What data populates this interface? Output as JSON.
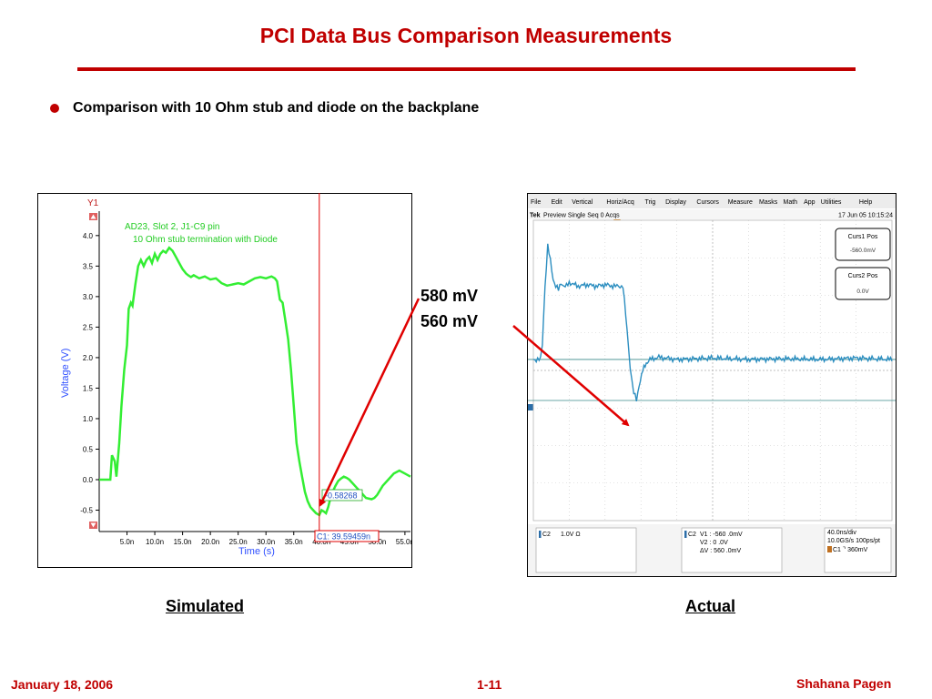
{
  "slide": {
    "title": "PCI Data Bus Comparison Measurements",
    "bullet": "Comparison with 10 Ohm stub and diode on the backplane",
    "annotations": [
      "580 mV",
      "560 mV"
    ],
    "captions": {
      "simulated": "Simulated",
      "actual": "Actual"
    },
    "footer": {
      "date": "January 18, 2006",
      "page": "1-11",
      "author": "Shahana Pagen"
    }
  },
  "chart_data": [
    {
      "type": "line",
      "name": "Simulated",
      "corner_label": "Y1",
      "legend": [
        "AD23, Slot 2, J1-C9 pin",
        "10 Ohm stub termination with Diode"
      ],
      "xlabel": "Time (s)",
      "ylabel": "Voltage (V)",
      "xlim": [
        0,
        56
      ],
      "ylim": [
        -0.85,
        4.4
      ],
      "xticks": [
        5,
        10,
        15,
        20,
        25,
        30,
        35,
        40,
        45,
        50,
        55
      ],
      "xtick_labels": [
        "5.0n",
        "10.0n",
        "15.0n",
        "20.0n",
        "25.0n",
        "30.0n",
        "35.0n",
        "40.0n",
        "45.0n",
        "50.0n",
        "55.0n"
      ],
      "yticks": [
        4.0,
        3.5,
        3.0,
        2.5,
        2.0,
        1.5,
        1.0,
        0.5,
        0.0,
        -0.5
      ],
      "ytick_labels": [
        "4.0",
        "3.5",
        "3.0",
        "2.5",
        "2.0",
        "1.5",
        "1.0",
        "0.5",
        "0.0",
        "-0.5"
      ],
      "cursor_x": 39.59459,
      "cursor_label": "C1: 39.59459n",
      "marker_label": "-0.58268",
      "line_color": "#33ee33",
      "cursor_color": "#e00000",
      "series": [
        {
          "x": [
            0,
            1,
            2,
            2.3,
            2.8,
            3.1,
            3.6,
            4.0,
            4.5,
            5.0,
            5.3,
            5.7,
            6.0,
            6.5,
            7.0,
            7.5,
            8.0,
            8.5,
            9.0,
            9.5,
            10.0,
            10.5,
            11.0,
            11.5,
            12.0,
            12.6,
            13.2,
            13.8,
            14.4,
            15.0,
            15.6,
            16.0,
            16.5,
            17.0,
            18.0,
            19.0,
            20.0,
            21.0,
            22.0,
            23.0,
            24.0,
            25.0,
            26.0,
            27.0,
            28.0,
            29.0,
            30.0,
            31.0,
            31.6,
            32.0,
            32.5,
            33.0,
            33.5,
            34.0,
            34.5,
            35.0,
            35.5,
            36.0,
            36.5,
            37.0,
            37.5,
            38.0,
            38.5,
            39.0,
            39.6,
            40.0,
            40.4,
            40.8,
            41.2,
            41.6,
            42.0,
            42.5,
            43.0,
            43.5,
            44.0,
            44.5,
            45.0,
            46.0,
            47.0,
            48.0,
            49.0,
            49.5,
            50.0,
            51.0,
            52.0,
            53.0,
            54.0,
            55.0,
            56.0
          ],
          "y": [
            0.0,
            0.0,
            0.0,
            0.4,
            0.3,
            0.05,
            0.6,
            1.2,
            1.8,
            2.2,
            2.8,
            2.9,
            2.85,
            3.2,
            3.5,
            3.6,
            3.5,
            3.6,
            3.65,
            3.55,
            3.7,
            3.6,
            3.7,
            3.75,
            3.72,
            3.8,
            3.75,
            3.65,
            3.55,
            3.45,
            3.38,
            3.35,
            3.32,
            3.35,
            3.3,
            3.33,
            3.28,
            3.3,
            3.22,
            3.18,
            3.2,
            3.22,
            3.2,
            3.25,
            3.3,
            3.32,
            3.3,
            3.33,
            3.3,
            3.25,
            2.95,
            2.9,
            2.6,
            2.3,
            1.8,
            1.2,
            0.6,
            0.3,
            0.05,
            -0.2,
            -0.35,
            -0.45,
            -0.5,
            -0.55,
            -0.58,
            -0.5,
            -0.52,
            -0.55,
            -0.45,
            -0.3,
            -0.2,
            -0.1,
            -0.02,
            0.02,
            0.05,
            0.03,
            0.0,
            -0.1,
            -0.2,
            -0.3,
            -0.32,
            -0.3,
            -0.25,
            -0.1,
            0.0,
            0.1,
            0.15,
            0.1,
            0.05
          ]
        }
      ]
    },
    {
      "type": "line",
      "name": "Actual",
      "menu": [
        "File",
        "Edit",
        "Vertical",
        "Horiz/Acq",
        "Trig",
        "Display",
        "Cursors",
        "Measure",
        "Masks",
        "Math",
        "App",
        "Utilities",
        "Help"
      ],
      "status_left": "Tek",
      "status_mode": "Preview  Single Seq  0 Acqs",
      "status_datetime": "17 Jun 05 10:15:24",
      "cursor1": {
        "label": "Curs1 Pos",
        "value": "-560.0mV"
      },
      "cursor2": {
        "label": "Curs2 Pos",
        "value": "0.0V"
      },
      "readout_channel": {
        "label": "C2",
        "text": "1.0V    Ω"
      },
      "readout_cursors": {
        "label": "C2",
        "lines": [
          "V1 : -560 .0mV",
          "V2 :      0 .0V",
          "ΔV :  560 .0mV"
        ]
      },
      "readout_timebase": [
        "40.0ns/div",
        "10.0GS/s     100ps/pt",
        "C1 ⌝ 360mV"
      ],
      "divisions_x": 10,
      "divisions_y": 8,
      "xlim": [
        0,
        400
      ],
      "ylim": [
        -2.2,
        1.9
      ],
      "line_color": "#2c8ec0",
      "cursor_line_color": "#3a8a8a",
      "cursor_levels": [
        0.0,
        -0.56
      ],
      "series": [
        {
          "x": [
            0,
            8,
            10,
            13,
            16,
            19,
            22,
            25,
            28,
            31,
            34,
            37,
            40,
            50,
            60,
            70,
            80,
            90,
            95,
            100,
            103,
            106,
            108,
            110,
            112,
            115,
            118,
            122,
            126,
            130,
            140,
            160,
            200,
            240,
            280,
            320,
            360,
            400
          ],
          "y": [
            0.0,
            0.0,
            0.2,
            1.0,
            1.55,
            1.35,
            1.1,
            1.0,
            0.95,
            1.05,
            1.0,
            1.0,
            1.05,
            1.0,
            1.02,
            1.0,
            1.02,
            1.0,
            1.0,
            1.0,
            0.6,
            0.2,
            -0.1,
            -0.3,
            -0.45,
            -0.56,
            -0.35,
            -0.15,
            -0.05,
            0.0,
            0.03,
            0.0,
            0.02,
            0.0,
            0.01,
            0.0,
            0.02,
            0.0
          ]
        }
      ]
    }
  ]
}
